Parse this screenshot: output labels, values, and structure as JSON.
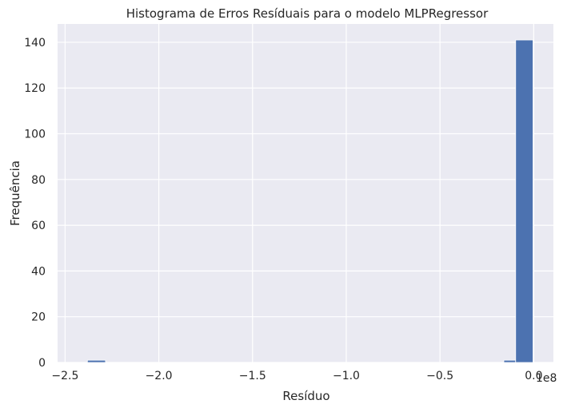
{
  "chart_data": {
    "type": "bar",
    "title": "Histograma de Erros Resíduais para o modelo MLPRegressor",
    "xlabel": "Resíduo",
    "ylabel": "Frequência",
    "x_offset_label": "1e8",
    "xlim": [
      -2.54,
      0.105
    ],
    "ylim": [
      0,
      148
    ],
    "grid": true,
    "x_ticks": [
      -2.5,
      -2.0,
      -1.5,
      -1.0,
      -0.5,
      0.0
    ],
    "x_tick_labels": [
      "−2.5",
      "−2.0",
      "−1.5",
      "−1.0",
      "−0.5",
      "0.0"
    ],
    "y_ticks": [
      0,
      20,
      40,
      60,
      80,
      100,
      120,
      140
    ],
    "y_tick_labels": [
      "0",
      "20",
      "40",
      "60",
      "80",
      "100",
      "120",
      "140"
    ],
    "bins": [
      {
        "start": -2.3809,
        "end": -2.2843,
        "count": 1
      },
      {
        "start": -0.1595,
        "end": -0.0964,
        "count": 1
      },
      {
        "start": -0.0964,
        "end": -0.0036,
        "count": 141
      }
    ],
    "bar_color": "#4c72b0"
  }
}
